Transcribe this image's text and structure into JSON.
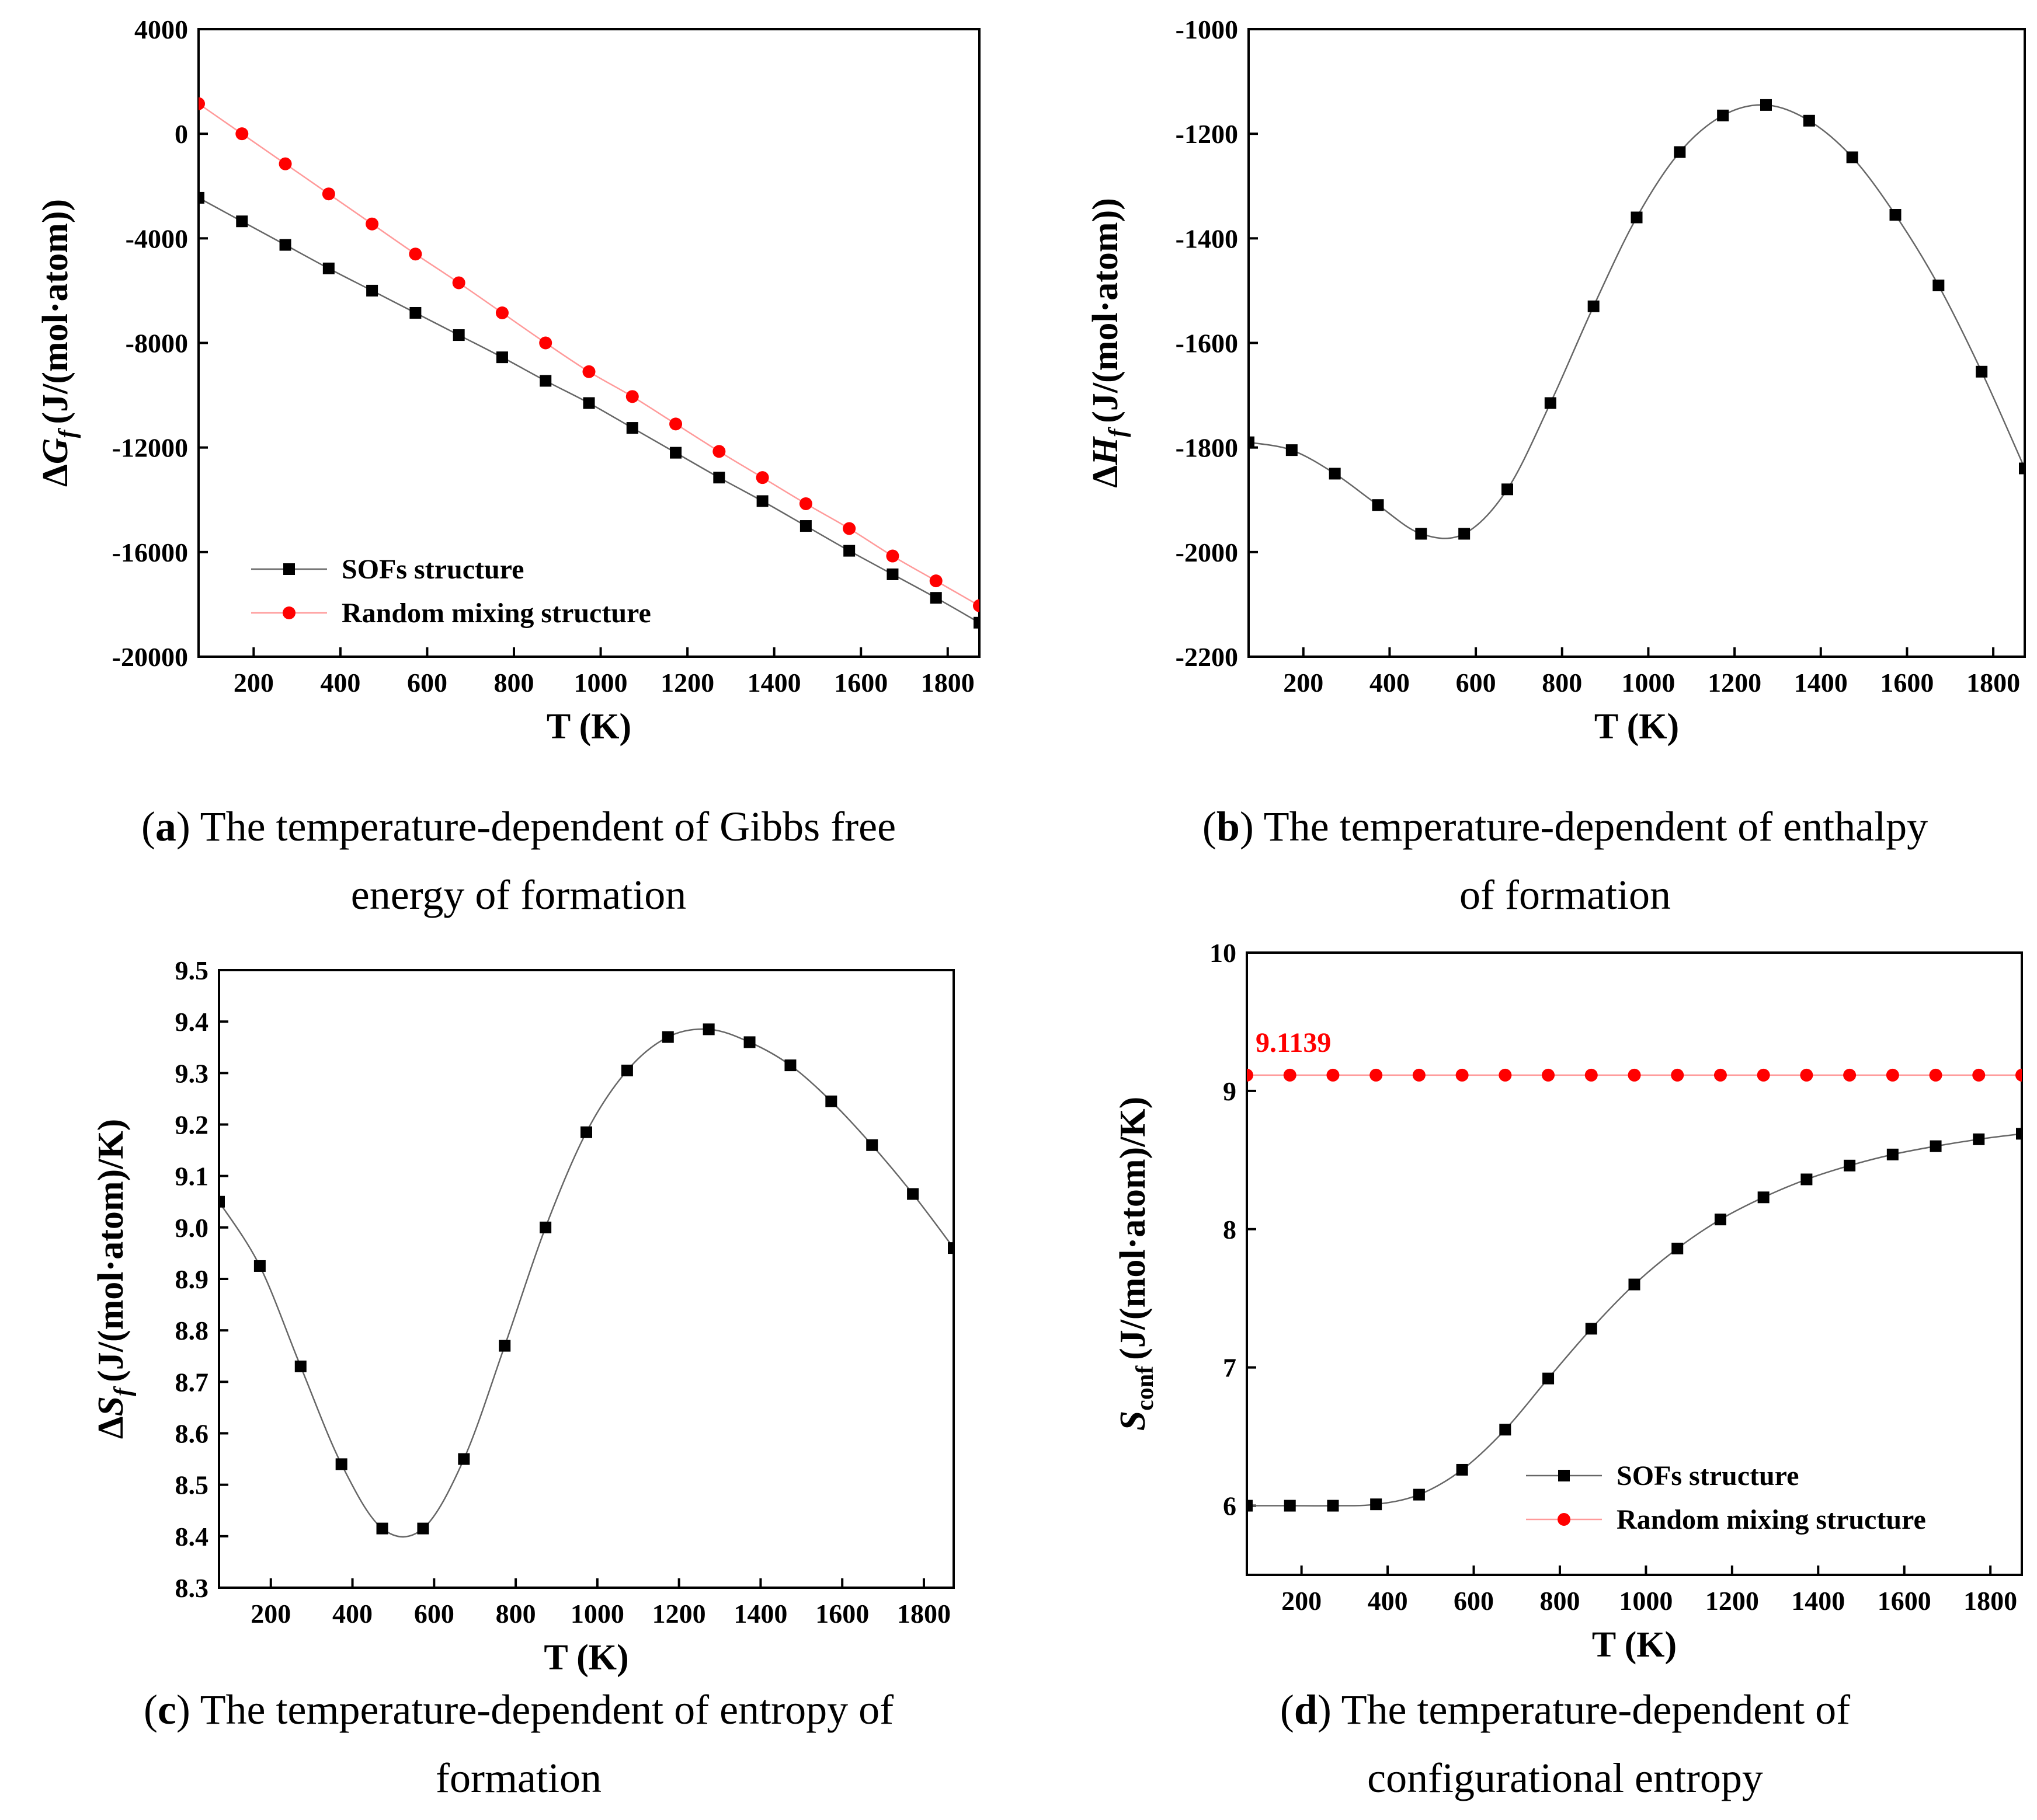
{
  "colors": {
    "sofs": "#000000",
    "sofs_line": "#666666",
    "random": "#ff0000",
    "random_line": "#ff9a9a"
  },
  "captions": [
    {
      "tag": "a",
      "lines": [
        "The temperature-dependent of Gibbs free",
        "energy of formation"
      ]
    },
    {
      "tag": "b",
      "lines": [
        "The temperature-dependent of enthalpy",
        "of formation"
      ]
    },
    {
      "tag": "c",
      "lines": [
        "The temperature-dependent of entropy of",
        "formation"
      ]
    },
    {
      "tag": "d",
      "lines": [
        "The temperature-dependent of",
        "configurational entropy"
      ]
    }
  ],
  "chart_data": [
    {
      "id": "a",
      "type": "line",
      "xlabel": "T (K)",
      "ylabel": {
        "prefix": "ΔG",
        "sub": "f",
        "unit": "(J/(mol·atom))"
      },
      "xlim": [
        73,
        1873
      ],
      "ylim": [
        -20000,
        4000
      ],
      "xticks": [
        200,
        400,
        600,
        800,
        1000,
        1200,
        1400,
        1600,
        1800
      ],
      "yticks": [
        -20000,
        -16000,
        -12000,
        -8000,
        -4000,
        0,
        4000
      ],
      "legend": "bottom-left",
      "series": [
        {
          "name": "SOFs structure",
          "marker": "square",
          "color": "#000000",
          "x": [
            73,
            173,
            273,
            373,
            473,
            573,
            673,
            773,
            873,
            973,
            1073,
            1173,
            1273,
            1373,
            1473,
            1573,
            1673,
            1773,
            1873
          ],
          "y": [
            -2450,
            -3350,
            -4250,
            -5150,
            -6000,
            -6850,
            -7700,
            -8550,
            -9450,
            -10300,
            -11250,
            -12200,
            -13150,
            -14050,
            -15000,
            -15950,
            -16850,
            -17750,
            -18700
          ]
        },
        {
          "name": "Random mixing structure",
          "marker": "circle",
          "color": "#ff0000",
          "x": [
            73,
            173,
            273,
            373,
            473,
            573,
            673,
            773,
            873,
            973,
            1073,
            1173,
            1273,
            1373,
            1473,
            1573,
            1673,
            1773,
            1873
          ],
          "y": [
            1150,
            0,
            -1150,
            -2300,
            -3450,
            -4600,
            -5700,
            -6850,
            -8000,
            -9100,
            -10050,
            -11100,
            -12150,
            -13150,
            -14150,
            -15100,
            -16150,
            -17100,
            -18050
          ]
        }
      ]
    },
    {
      "id": "b",
      "type": "line",
      "xlabel": "T (K)",
      "ylabel": {
        "prefix": "ΔH",
        "sub": "f",
        "unit": "(J/(mol·atom))"
      },
      "xlim": [
        73,
        1873
      ],
      "ylim": [
        -2200,
        -1000
      ],
      "xticks": [
        200,
        400,
        600,
        800,
        1000,
        1200,
        1400,
        1600,
        1800
      ],
      "yticks": [
        -2200,
        -2000,
        -1800,
        -1600,
        -1400,
        -1200,
        -1000
      ],
      "series": [
        {
          "marker": "square",
          "color": "#000000",
          "x": [
            73,
            173,
            273,
            373,
            473,
            573,
            673,
            773,
            873,
            973,
            1073,
            1173,
            1273,
            1373,
            1473,
            1573,
            1673,
            1773,
            1873
          ],
          "y": [
            -1790,
            -1805,
            -1850,
            -1910,
            -1965,
            -1965,
            -1880,
            -1715,
            -1530,
            -1360,
            -1235,
            -1165,
            -1145,
            -1175,
            -1245,
            -1355,
            -1490,
            -1655,
            -1840
          ]
        }
      ]
    },
    {
      "id": "c",
      "type": "line",
      "xlabel": "T (K)",
      "ylabel": {
        "prefix": "ΔS",
        "sub": "f",
        "unit": "(J/(mol·atom)/K)"
      },
      "xlim": [
        73,
        1873
      ],
      "ylim": [
        8.3,
        9.5
      ],
      "xticks": [
        200,
        400,
        600,
        800,
        1000,
        1200,
        1400,
        1600,
        1800
      ],
      "yticks": [
        "8.3",
        "8.4",
        "8.5",
        "8.6",
        "8.7",
        "8.8",
        "8.9",
        "9.0",
        "9.1",
        "9.2",
        "9.3",
        "9.4",
        "9.5"
      ],
      "series": [
        {
          "marker": "square",
          "color": "#000000",
          "x": [
            73,
            173,
            273,
            373,
            473,
            573,
            673,
            773,
            873,
            973,
            1073,
            1173,
            1273,
            1373,
            1473,
            1573,
            1673,
            1773,
            1873
          ],
          "y": [
            9.05,
            8.925,
            8.73,
            8.54,
            8.415,
            8.415,
            8.55,
            8.77,
            9.0,
            9.185,
            9.305,
            9.37,
            9.385,
            9.36,
            9.315,
            9.245,
            9.16,
            9.065,
            8.96
          ]
        }
      ]
    },
    {
      "id": "d",
      "type": "line",
      "xlabel": "T (K)",
      "ylabel": {
        "prefix": "S",
        "sub": "conf",
        "unit": "(J/(mol·atom)/K)"
      },
      "xlim": [
        73,
        1873
      ],
      "ylim": [
        5.5,
        10
      ],
      "xticks": [
        200,
        400,
        600,
        800,
        1000,
        1200,
        1400,
        1600,
        1800
      ],
      "yticks": [
        6,
        7,
        8,
        9,
        10
      ],
      "legend": "bottom-right",
      "annotation": {
        "text": "9.1139",
        "x": 73,
        "y": 9.1139,
        "color": "#ff0000"
      },
      "series": [
        {
          "name": "SOFs structure",
          "marker": "square",
          "color": "#000000",
          "x": [
            73,
            173,
            273,
            373,
            473,
            573,
            673,
            773,
            873,
            973,
            1073,
            1173,
            1273,
            1373,
            1473,
            1573,
            1673,
            1773,
            1873
          ],
          "y": [
            6.0,
            6.0,
            6.0,
            6.01,
            6.08,
            6.26,
            6.55,
            6.92,
            7.28,
            7.6,
            7.86,
            8.07,
            8.23,
            8.36,
            8.46,
            8.54,
            8.6,
            8.65,
            8.69
          ]
        },
        {
          "name": "Random mixing structure",
          "marker": "circle",
          "color": "#ff0000",
          "x": [
            73,
            173,
            273,
            373,
            473,
            573,
            673,
            773,
            873,
            973,
            1073,
            1173,
            1273,
            1373,
            1473,
            1573,
            1673,
            1773,
            1873
          ],
          "y": [
            9.1139,
            9.1139,
            9.1139,
            9.1139,
            9.1139,
            9.1139,
            9.1139,
            9.1139,
            9.1139,
            9.1139,
            9.1139,
            9.1139,
            9.1139,
            9.1139,
            9.1139,
            9.1139,
            9.1139,
            9.1139,
            9.1139
          ]
        }
      ]
    }
  ]
}
